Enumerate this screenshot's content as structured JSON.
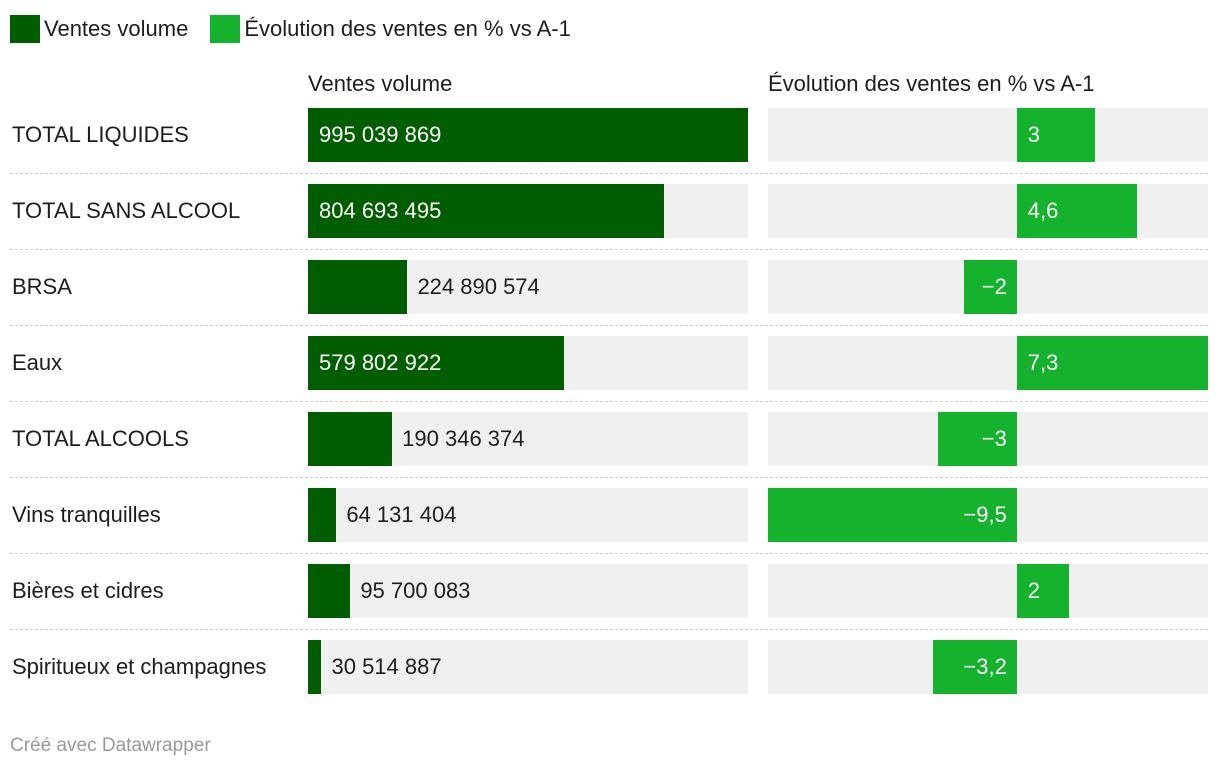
{
  "colors": {
    "volume": "#005e00",
    "evolution": "#14b22d",
    "track": "#f0f0f0"
  },
  "legend": [
    {
      "label": "Ventes volume",
      "color": "#005e00"
    },
    {
      "label": "Évolution des ventes en % vs A-1",
      "color": "#14b22d"
    }
  ],
  "columns": {
    "volume": "Ventes volume",
    "evolution": "Évolution des ventes en % vs A-1"
  },
  "footer": "Créé avec Datawrapper",
  "chart_data": {
    "type": "bar",
    "title": "",
    "categories": [
      "TOTAL LIQUIDES",
      "TOTAL SANS ALCOOL",
      "BRSA",
      "Eaux",
      "TOTAL ALCOOLS",
      "Vins tranquilles",
      "Bières et cidres",
      "Spiritueux et champagnes"
    ],
    "series": [
      {
        "name": "Ventes volume",
        "values": [
          995039869,
          804693495,
          224890574,
          579802922,
          190346374,
          64131404,
          95700083,
          30514887
        ],
        "labels": [
          "995 039 869",
          "804 693 495",
          "224 890 574",
          "579 802 922",
          "190 346 374",
          "64 131 404",
          "95 700 083",
          "30 514 887"
        ],
        "range": [
          0,
          995039869
        ]
      },
      {
        "name": "Évolution des ventes en % vs A-1",
        "values": [
          3,
          4.6,
          -2,
          7.3,
          -3,
          -9.5,
          2,
          -3.2
        ],
        "labels": [
          "3",
          "4,6",
          "−2",
          "7,3",
          "−3",
          "−9,5",
          "2",
          "−3,2"
        ],
        "range": [
          -9.5,
          7.3
        ]
      }
    ]
  }
}
